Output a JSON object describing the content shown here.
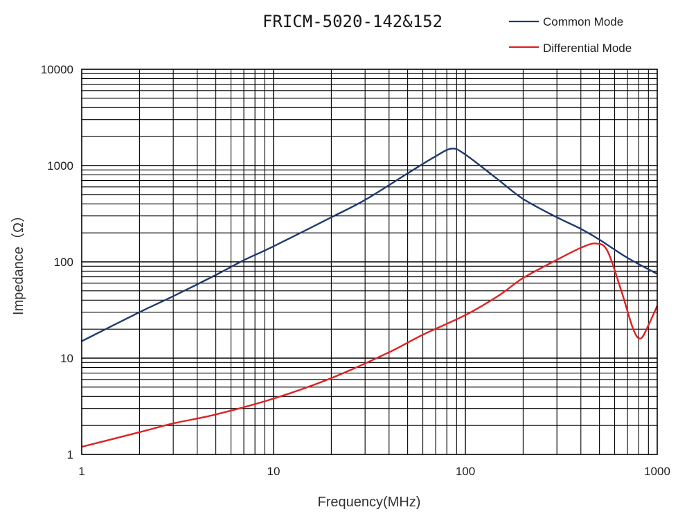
{
  "chart_data": {
    "type": "line",
    "title": "FRICM-5020-142&152",
    "xlabel": "Frequency(MHz)",
    "ylabel": "Impedance（Ω）",
    "x_scale": "log",
    "y_scale": "log",
    "xlim": [
      1,
      1000
    ],
    "ylim": [
      1,
      10000
    ],
    "x_ticks": [
      "1",
      "10",
      "100",
      "1000"
    ],
    "y_ticks": [
      "1",
      "10",
      "100",
      "1000",
      "10000"
    ],
    "grid": true,
    "legend_position": "top-right",
    "series": [
      {
        "name": "Common Mode",
        "color": "#1f3a6e",
        "x": [
          1,
          2,
          3,
          5,
          7,
          10,
          20,
          30,
          50,
          70,
          85,
          100,
          150,
          200,
          300,
          400,
          500,
          700,
          1000
        ],
        "y": [
          15,
          30,
          44,
          73,
          104,
          145,
          290,
          440,
          830,
          1250,
          1500,
          1300,
          700,
          450,
          290,
          220,
          170,
          110,
          75
        ]
      },
      {
        "name": "Differential Mode",
        "color": "#e02020",
        "x": [
          1,
          2,
          3,
          5,
          10,
          20,
          40,
          60,
          100,
          150,
          200,
          300,
          400,
          480,
          550,
          650,
          750,
          820,
          900,
          1000
        ],
        "y": [
          1.2,
          1.7,
          2.1,
          2.6,
          3.8,
          6.2,
          11.5,
          17.5,
          28,
          45,
          68,
          105,
          140,
          155,
          130,
          50,
          20,
          16,
          22,
          35
        ]
      }
    ]
  }
}
